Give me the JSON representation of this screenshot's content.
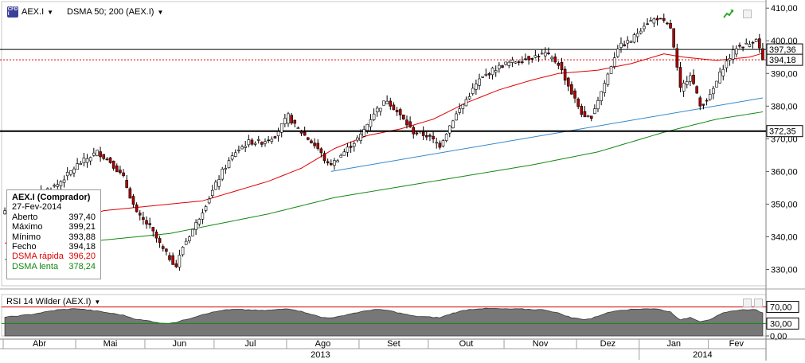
{
  "toolbar": {
    "symbol": "AEX.I",
    "indicator": "DSMA 50; 200 (AEX.I)",
    "rsi_label": "RSI 14 Wilder (AEX.I)"
  },
  "info_box": {
    "title": "AEX.I (Comprador)",
    "date": "27-Fev-2014",
    "rows": [
      {
        "label": "Aberto",
        "value": "397,40"
      },
      {
        "label": "Máximo",
        "value": "399,21"
      },
      {
        "label": "Mínimo",
        "value": "393,88"
      },
      {
        "label": "Fecho",
        "value": "394,18"
      },
      {
        "label": "DSMA rápida",
        "value": "396,20"
      },
      {
        "label": "DSMA lenta",
        "value": "378,24"
      }
    ]
  },
  "colors": {
    "up": "#ffffff",
    "down": "#b00000",
    "wick": "#000000",
    "sma_fast": "#e00000",
    "sma_slow": "#118811",
    "trend": "#3388cc",
    "rsi_fill": "#777777",
    "label_red": "#e00000",
    "label_green": "#118811"
  },
  "chart_data": [
    {
      "type": "candlestick",
      "title": "AEX.I",
      "ylim": [
        325,
        412
      ],
      "y_ticks": [
        "410,00",
        "400,00",
        "390,00",
        "380,00",
        "370,00",
        "360,00",
        "350,00",
        "340,00",
        "330,00"
      ],
      "y_tick_values": [
        410,
        400,
        390,
        380,
        370,
        360,
        350,
        340,
        330
      ],
      "x_months": [
        "Abr",
        "Mai",
        "Jun",
        "Jul",
        "Ago",
        "Set",
        "Out",
        "Nov",
        "Dez",
        "Jan",
        "Fev"
      ],
      "x_years": [
        "2013",
        "2014"
      ],
      "close_keypoints": [
        [
          0,
          348
        ],
        [
          8,
          352
        ],
        [
          16,
          356
        ],
        [
          22,
          362
        ],
        [
          28,
          366
        ],
        [
          32,
          363
        ],
        [
          36,
          358
        ],
        [
          40,
          347
        ],
        [
          44,
          343
        ],
        [
          48,
          336
        ],
        [
          52,
          331
        ],
        [
          54,
          337
        ],
        [
          58,
          344
        ],
        [
          62,
          352
        ],
        [
          66,
          360
        ],
        [
          70,
          366
        ],
        [
          74,
          369
        ],
        [
          78,
          369
        ],
        [
          82,
          371
        ],
        [
          86,
          377
        ],
        [
          88,
          374
        ],
        [
          92,
          370
        ],
        [
          95,
          367
        ],
        [
          98,
          362
        ],
        [
          100,
          363
        ],
        [
          104,
          367
        ],
        [
          108,
          371
        ],
        [
          112,
          378
        ],
        [
          116,
          382
        ],
        [
          120,
          377
        ],
        [
          124,
          372
        ],
        [
          128,
          371
        ],
        [
          132,
          368
        ],
        [
          136,
          376
        ],
        [
          140,
          382
        ],
        [
          144,
          388
        ],
        [
          148,
          391
        ],
        [
          152,
          393
        ],
        [
          156,
          394
        ],
        [
          160,
          395
        ],
        [
          164,
          396
        ],
        [
          168,
          393
        ],
        [
          172,
          384
        ],
        [
          176,
          376
        ],
        [
          178,
          377
        ],
        [
          182,
          387
        ],
        [
          186,
          398
        ],
        [
          190,
          400
        ],
        [
          194,
          405
        ],
        [
          198,
          407
        ],
        [
          202,
          404
        ],
        [
          205,
          385
        ],
        [
          208,
          390
        ],
        [
          211,
          380
        ],
        [
          214,
          383
        ],
        [
          218,
          392
        ],
        [
          222,
          398
        ],
        [
          226,
          399
        ],
        [
          228,
          401
        ],
        [
          230,
          394
        ]
      ],
      "last_close": 394.18,
      "price_levels": [
        {
          "value": 397.36,
          "label": "397,36",
          "style": "solid"
        },
        {
          "value": 394.18,
          "label": "394,18",
          "style": "dotted"
        },
        {
          "value": 372.35,
          "label": "372,35",
          "style": "solid-bold"
        }
      ],
      "trend_line": [
        [
          99,
          360
        ],
        [
          230,
          382.5
        ]
      ],
      "sma_fast_keypoints": [
        [
          0,
          338
        ],
        [
          30,
          348
        ],
        [
          50,
          350
        ],
        [
          60,
          351
        ],
        [
          70,
          354
        ],
        [
          80,
          357
        ],
        [
          90,
          361
        ],
        [
          100,
          367
        ],
        [
          110,
          371
        ],
        [
          120,
          373
        ],
        [
          130,
          376
        ],
        [
          140,
          381
        ],
        [
          150,
          385
        ],
        [
          160,
          388
        ],
        [
          168,
          390
        ],
        [
          180,
          391
        ],
        [
          190,
          393
        ],
        [
          200,
          396
        ],
        [
          206,
          395
        ],
        [
          216,
          394
        ],
        [
          226,
          395
        ],
        [
          230,
          396.2
        ]
      ],
      "sma_slow_keypoints": [
        [
          0,
          333
        ],
        [
          20,
          338
        ],
        [
          50,
          341
        ],
        [
          80,
          347
        ],
        [
          100,
          352
        ],
        [
          130,
          357
        ],
        [
          160,
          362
        ],
        [
          180,
          366
        ],
        [
          200,
          372
        ],
        [
          216,
          376
        ],
        [
          230,
          378.24
        ]
      ]
    },
    {
      "type": "area",
      "title": "RSI 14 Wilder (AEX.I)",
      "ylim": [
        0,
        100
      ],
      "y_ticks": [
        "70,00",
        "30,00",
        "0,00"
      ],
      "y_tick_values": [
        70,
        30,
        0
      ],
      "levels": [
        70,
        30
      ],
      "rsi_keypoints": [
        [
          0,
          45
        ],
        [
          8,
          52
        ],
        [
          16,
          63
        ],
        [
          22,
          66
        ],
        [
          28,
          60
        ],
        [
          32,
          55
        ],
        [
          36,
          50
        ],
        [
          40,
          40
        ],
        [
          44,
          36
        ],
        [
          48,
          30
        ],
        [
          52,
          33
        ],
        [
          56,
          42
        ],
        [
          60,
          52
        ],
        [
          66,
          62
        ],
        [
          70,
          64
        ],
        [
          74,
          63
        ],
        [
          78,
          61
        ],
        [
          82,
          63
        ],
        [
          86,
          66
        ],
        [
          88,
          63
        ],
        [
          92,
          55
        ],
        [
          96,
          45
        ],
        [
          100,
          44
        ],
        [
          104,
          52
        ],
        [
          108,
          58
        ],
        [
          112,
          64
        ],
        [
          116,
          62
        ],
        [
          120,
          55
        ],
        [
          124,
          48
        ],
        [
          128,
          46
        ],
        [
          132,
          44
        ],
        [
          136,
          55
        ],
        [
          140,
          63
        ],
        [
          144,
          66
        ],
        [
          148,
          66
        ],
        [
          152,
          65
        ],
        [
          156,
          65
        ],
        [
          160,
          64
        ],
        [
          164,
          63
        ],
        [
          168,
          55
        ],
        [
          172,
          44
        ],
        [
          176,
          40
        ],
        [
          178,
          42
        ],
        [
          182,
          54
        ],
        [
          186,
          62
        ],
        [
          190,
          64
        ],
        [
          194,
          66
        ],
        [
          198,
          65
        ],
        [
          202,
          58
        ],
        [
          205,
          38
        ],
        [
          208,
          45
        ],
        [
          211,
          35
        ],
        [
          214,
          40
        ],
        [
          218,
          55
        ],
        [
          222,
          62
        ],
        [
          226,
          64
        ],
        [
          228,
          63
        ],
        [
          230,
          55
        ]
      ]
    }
  ]
}
